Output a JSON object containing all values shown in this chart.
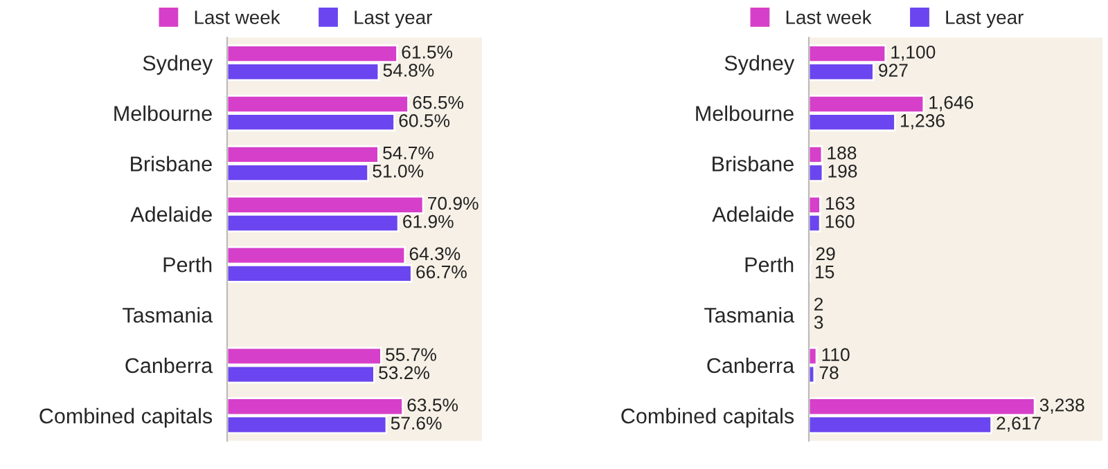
{
  "chart_data": [
    {
      "type": "bar",
      "orientation": "horizontal",
      "categories": [
        "Sydney",
        "Melbourne",
        "Brisbane",
        "Adelaide",
        "Perth",
        "Tasmania",
        "Canberra",
        "Combined capitals"
      ],
      "series": [
        {
          "name": "Last week",
          "color": "#d63fc9",
          "values": [
            61.5,
            65.5,
            54.7,
            70.9,
            64.3,
            null,
            55.7,
            63.5
          ],
          "value_labels": [
            "61.5%",
            "65.5%",
            "54.7%",
            "70.9%",
            "64.3%",
            null,
            "55.7%",
            "63.5%"
          ]
        },
        {
          "name": "Last year",
          "color": "#6b45ef",
          "values": [
            54.8,
            60.5,
            51.0,
            61.9,
            66.7,
            null,
            53.2,
            57.6
          ],
          "value_labels": [
            "54.8%",
            "60.5%",
            "51.0%",
            "61.9%",
            "66.7%",
            null,
            "53.2%",
            "57.6%"
          ]
        }
      ],
      "legend": "top",
      "tick_labels": "y",
      "grid": false
    },
    {
      "type": "bar",
      "orientation": "horizontal",
      "categories": [
        "Sydney",
        "Melbourne",
        "Brisbane",
        "Adelaide",
        "Perth",
        "Tasmania",
        "Canberra",
        "Combined capitals"
      ],
      "series": [
        {
          "name": "Last week",
          "color": "#d63fc9",
          "values": [
            1100,
            1646,
            188,
            163,
            29,
            2,
            110,
            3238
          ],
          "value_labels": [
            "1,100",
            "1,646",
            "188",
            "163",
            "29",
            "2",
            "110",
            "3,238"
          ]
        },
        {
          "name": "Last year",
          "color": "#6b45ef",
          "values": [
            927,
            1236,
            198,
            160,
            15,
            3,
            78,
            2617
          ],
          "value_labels": [
            "927",
            "1,236",
            "198",
            "160",
            "15",
            "3",
            "78",
            "2,617"
          ]
        }
      ],
      "legend": "top",
      "tick_labels": "y",
      "grid": false
    }
  ]
}
